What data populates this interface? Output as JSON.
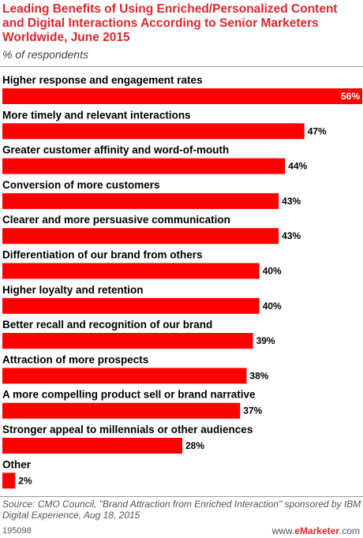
{
  "header": {
    "title": "Leading Benefits of Using Enriched/Personalized Content and Digital Interactions According to Senior Marketers Worldwide, June 2015",
    "subtitle": "% of respondents"
  },
  "chart_data": {
    "type": "bar",
    "orientation": "horizontal",
    "categories": [
      "Higher response and engagement rates",
      "More timely and relevant interactions",
      "Greater customer affinity and word-of-mouth",
      "Conversion of more customers",
      "Clearer and more persuasive communication",
      "Differentiation of our brand from others",
      "Higher loyalty and retention",
      "Better recall and recognition of our brand",
      "Attraction of more prospects",
      "A more compelling product sell or brand narrative",
      "Stronger appeal to millennials or other audiences",
      "Other"
    ],
    "values": [
      56,
      47,
      44,
      43,
      43,
      40,
      40,
      39,
      38,
      37,
      28,
      2
    ],
    "value_labels": [
      "56%",
      "47%",
      "44%",
      "43%",
      "43%",
      "40%",
      "40%",
      "39%",
      "38%",
      "37%",
      "28%",
      "2%"
    ],
    "unit": "%",
    "xlim": [
      0,
      56
    ],
    "bar_color": "#ff0000",
    "grid": false,
    "legend": "none"
  },
  "footer": {
    "source": "Source: CMO Council, \"Brand Attraction from Enriched Interaction\" sponsored by IBM Digital Experience, Aug 18, 2015",
    "chart_id": "195098",
    "brand_prefix": "www.",
    "brand_name": "eMarketer",
    "brand_suffix": ".com"
  },
  "colors": {
    "accent": "#e0262d",
    "bar": "#ff0000"
  }
}
